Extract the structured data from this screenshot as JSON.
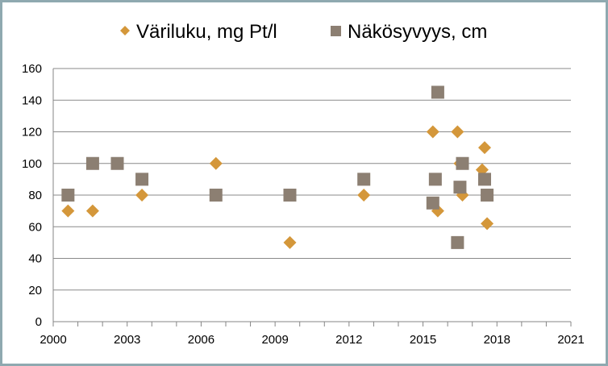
{
  "chart_data": {
    "type": "scatter",
    "title": "",
    "xlabel": "",
    "ylabel": "",
    "xlim": [
      2000,
      2021
    ],
    "ylim": [
      0,
      160
    ],
    "xticks": [
      "2000",
      "2003",
      "2006",
      "2009",
      "2012",
      "2015",
      "2018",
      "2021"
    ],
    "yticks": [
      "0",
      "20",
      "40",
      "60",
      "80",
      "100",
      "120",
      "140",
      "160"
    ],
    "grid": "horizontal",
    "legend_position": "top",
    "series": [
      {
        "name": "Väriluku, mg Pt/l",
        "marker": "diamond",
        "color": "#d4973a",
        "points": [
          [
            2000.6,
            70
          ],
          [
            2001.6,
            70
          ],
          [
            2003.6,
            80
          ],
          [
            2006.6,
            100
          ],
          [
            2009.6,
            50
          ],
          [
            2012.6,
            80
          ],
          [
            2015.4,
            120
          ],
          [
            2015.6,
            70
          ],
          [
            2016.4,
            120
          ],
          [
            2016.5,
            100
          ],
          [
            2016.6,
            80
          ],
          [
            2017.4,
            96
          ],
          [
            2017.5,
            110
          ],
          [
            2017.6,
            62
          ]
        ]
      },
      {
        "name": "Näkösyvyys, cm",
        "marker": "square",
        "color": "#8c7f72",
        "points": [
          [
            2000.6,
            80
          ],
          [
            2001.6,
            100
          ],
          [
            2002.6,
            100
          ],
          [
            2003.6,
            90
          ],
          [
            2006.6,
            80
          ],
          [
            2009.6,
            80
          ],
          [
            2012.6,
            90
          ],
          [
            2015.6,
            145
          ],
          [
            2015.5,
            90
          ],
          [
            2015.4,
            75
          ],
          [
            2016.6,
            100
          ],
          [
            2016.5,
            85
          ],
          [
            2016.4,
            50
          ],
          [
            2017.5,
            90
          ],
          [
            2017.6,
            80
          ]
        ]
      }
    ]
  }
}
